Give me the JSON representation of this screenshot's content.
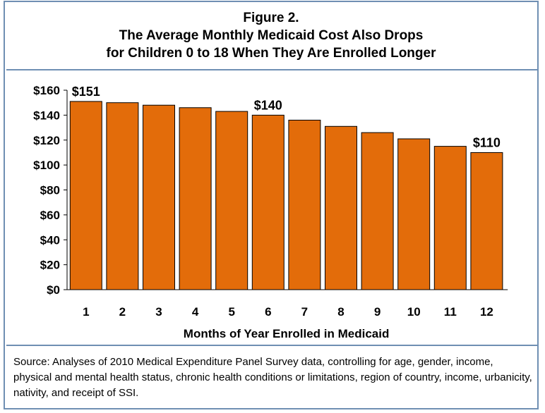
{
  "title_lines": [
    "Figure 2.",
    "The Average Monthly Medicaid Cost Also Drops",
    "for Children 0 to 18 When They Are Enrolled Longer"
  ],
  "source_note": "Source: Analyses of 2010 Medical Expenditure Panel Survey data, controlling for age, gender, income, physical and mental health status, chronic health conditions or limitations, region of country, income, urbanicity, nativity, and receipt of SSI.",
  "colors": {
    "bar": "#e36c0a",
    "bar_stroke": "#000000",
    "frame": "#6f8fb3"
  },
  "chart_data": {
    "type": "bar",
    "title": "Figure 2. The Average Monthly Medicaid Cost Also Drops for Children 0 to 18 When They Are Enrolled Longer",
    "xlabel": "Months of Year Enrolled in Medicaid",
    "ylabel": "",
    "categories": [
      "1",
      "2",
      "3",
      "4",
      "5",
      "6",
      "7",
      "8",
      "9",
      "10",
      "11",
      "12"
    ],
    "values": [
      151,
      150,
      148,
      146,
      143,
      140,
      136,
      131,
      126,
      121,
      115,
      110
    ],
    "data_labels": [
      {
        "index": 0,
        "text": "$151"
      },
      {
        "index": 5,
        "text": "$140"
      },
      {
        "index": 11,
        "text": "$110"
      }
    ],
    "ylim": [
      0,
      160
    ],
    "yticks": [
      0,
      20,
      40,
      60,
      80,
      100,
      120,
      140,
      160
    ],
    "ytick_labels": [
      "$0",
      "$20",
      "$40",
      "$60",
      "$80",
      "$100",
      "$120",
      "$140",
      "$160"
    ],
    "grid": false,
    "legend": "none"
  }
}
